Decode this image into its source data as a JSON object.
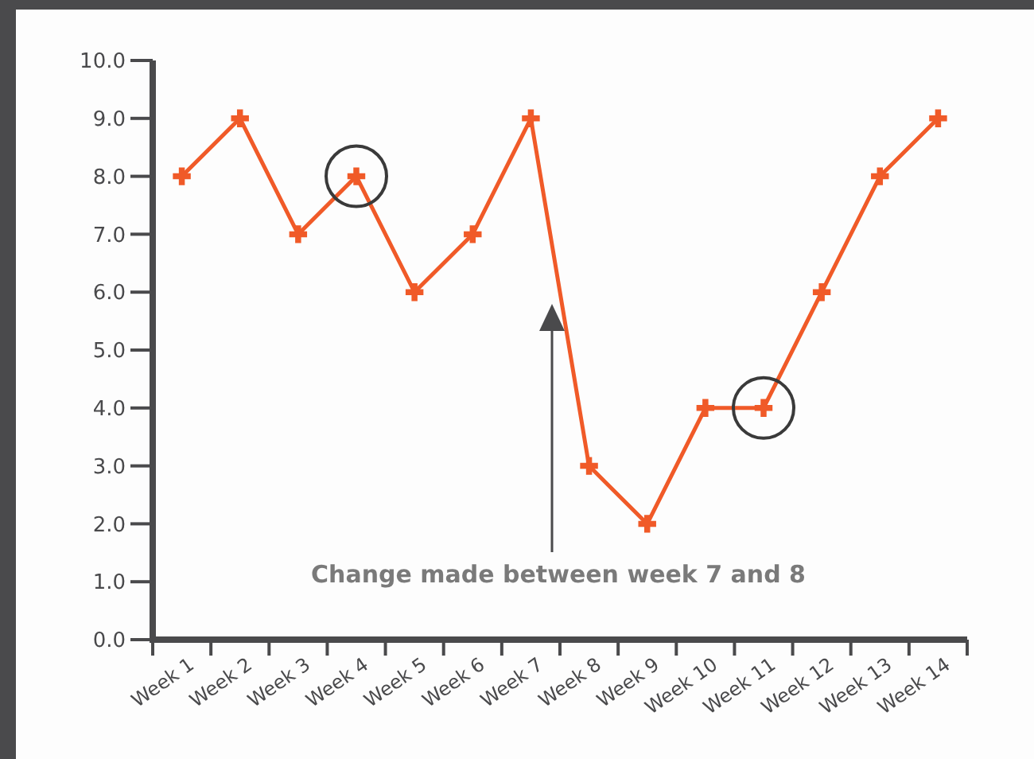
{
  "chart_data": {
    "type": "line",
    "categories": [
      "Week 1",
      "Week 2",
      "Week 3",
      "Week 4",
      "Week 5",
      "Week 6",
      "Week 7",
      "Week 8",
      "Week 9",
      "Week 10",
      "Week 11",
      "Week 12",
      "Week 13",
      "Week 14"
    ],
    "series": [
      {
        "color": "#f05a28",
        "values": [
          8,
          9,
          7,
          8,
          6,
          7,
          9,
          3,
          2,
          4,
          4,
          6,
          8,
          9
        ]
      }
    ],
    "ylim": [
      0,
      10
    ],
    "yticks": [
      {
        "value": 0,
        "label": "0.0"
      },
      {
        "value": 1,
        "label": "1.0"
      },
      {
        "value": 2,
        "label": "2.0"
      },
      {
        "value": 3,
        "label": "3.0"
      },
      {
        "value": 4,
        "label": "4.0"
      },
      {
        "value": 5,
        "label": "5.0"
      },
      {
        "value": 6,
        "label": "6.0"
      },
      {
        "value": 7,
        "label": "7.0"
      },
      {
        "value": 8,
        "label": "8.0"
      },
      {
        "value": 9,
        "label": "9.0"
      },
      {
        "value": 10,
        "label": "10.0"
      }
    ],
    "marker": "cross",
    "line_style": "solid",
    "grid": false,
    "annotations": [
      "Change made between week 7 and 8"
    ]
  }
}
